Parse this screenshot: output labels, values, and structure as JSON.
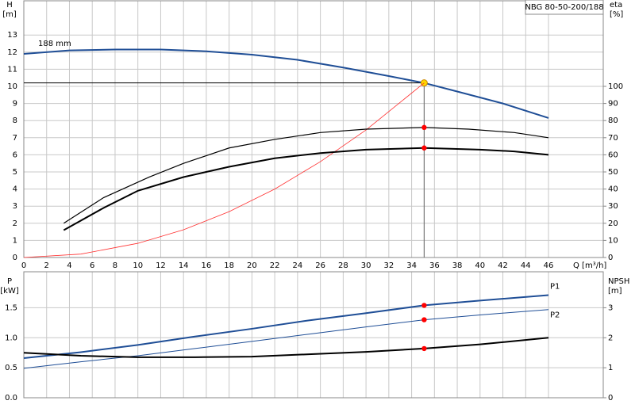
{
  "chart_data": [
    {
      "type": "line",
      "title": "NBG 80-50-200/188",
      "y_label": [
        "H",
        "[m]"
      ],
      "y2_label": [
        "eta",
        "[%]"
      ],
      "x_label": "Q [m³/h]",
      "xlim": [
        0,
        50.8
      ],
      "xticks": [
        0,
        2,
        4,
        6,
        8,
        10,
        12,
        14,
        16,
        18,
        20,
        22,
        24,
        26,
        28,
        30,
        32,
        34,
        36,
        38,
        40,
        42,
        44,
        46
      ],
      "ylim": [
        0,
        15
      ],
      "yticks": [
        0,
        1,
        2,
        3,
        4,
        5,
        6,
        7,
        8,
        9,
        10,
        11,
        12,
        13
      ],
      "y2lim": [
        0,
        150
      ],
      "y2ticks": [
        0,
        10,
        20,
        30,
        40,
        50,
        60,
        70,
        80,
        90,
        100
      ],
      "grid": true,
      "xtick_labels": true,
      "duty_x": 35.1,
      "duty_y": 10.2,
      "series": [
        {
          "name": "188 mm",
          "color": "#1f4e96",
          "width": 2,
          "label_at": "start",
          "point_color": "#ffd700",
          "x": [
            0,
            4,
            8,
            12,
            16,
            20,
            24,
            28,
            32,
            35.1,
            38,
            42,
            46
          ],
          "values": [
            11.9,
            12.1,
            12.15,
            12.15,
            12.05,
            11.85,
            11.55,
            11.1,
            10.6,
            10.2,
            9.7,
            9.0,
            8.15
          ]
        },
        {
          "color": "#ff3030",
          "width": 0.8,
          "x": [
            0,
            5,
            10,
            14,
            18,
            22,
            26,
            30,
            35.1
          ],
          "values": [
            0,
            0.2,
            0.83,
            1.62,
            2.68,
            4.0,
            5.6,
            7.45,
            10.2
          ]
        },
        {
          "color": "#000000",
          "width": 1.2,
          "axis": "y2",
          "point_color": "#ff0000",
          "x": [
            3.5,
            7,
            11,
            14,
            18,
            22,
            26,
            30,
            35.1,
            39,
            43,
            46
          ],
          "values": [
            20,
            35,
            47,
            55,
            64,
            69,
            73,
            75,
            76,
            75,
            73,
            70
          ]
        },
        {
          "color": "#000000",
          "width": 2,
          "axis": "y2",
          "point_color": "#ff0000",
          "x": [
            3.5,
            7,
            10,
            14,
            18,
            22,
            26,
            30,
            35.1,
            40,
            43,
            46
          ],
          "values": [
            16,
            29,
            39,
            47,
            53,
            58,
            61,
            63,
            64,
            63,
            62,
            60
          ]
        }
      ]
    },
    {
      "type": "line",
      "y_label": [
        "P",
        "[kW]"
      ],
      "y2_label": [
        "NPSH",
        "[m]"
      ],
      "xlim": [
        0,
        50.8
      ],
      "xticks": [
        0,
        2,
        4,
        6,
        8,
        10,
        12,
        14,
        16,
        18,
        20,
        22,
        24,
        26,
        28,
        30,
        32,
        34,
        36,
        38,
        40,
        42,
        44,
        46
      ],
      "ylim": [
        0,
        2.1
      ],
      "yticks": [
        {
          "value": 0,
          "label": "0.0"
        },
        {
          "value": 0.5,
          "label": "0.5"
        },
        {
          "value": 1,
          "label": "1.0"
        },
        {
          "value": 1.5,
          "label": "1.5"
        }
      ],
      "y2lim": [
        0,
        4.2
      ],
      "y2ticks": [
        0,
        1,
        2,
        3
      ],
      "grid": true,
      "xtick_labels": false,
      "duty_x": 35.1,
      "series": [
        {
          "name": "P1",
          "color": "#1f4e96",
          "width": 2,
          "label_at": "end-above",
          "point_color": "#ff0000",
          "x": [
            0,
            5,
            10,
            15,
            20,
            25,
            30,
            35.1,
            40,
            46
          ],
          "values": [
            0.66,
            0.76,
            0.88,
            1.02,
            1.15,
            1.29,
            1.41,
            1.54,
            1.62,
            1.71
          ]
        },
        {
          "name": "P2",
          "color": "#1f4e96",
          "width": 1,
          "label_at": "end-below",
          "point_color": "#ff0000",
          "x": [
            0,
            5,
            10,
            15,
            20,
            25,
            30,
            35.1,
            40,
            46
          ],
          "values": [
            0.49,
            0.6,
            0.7,
            0.82,
            0.94,
            1.06,
            1.18,
            1.3,
            1.38,
            1.47
          ]
        },
        {
          "color": "#000000",
          "width": 2,
          "axis": "y2",
          "point_color": "#ff0000",
          "x": [
            0,
            5,
            10,
            15,
            20,
            25,
            30,
            35.1,
            40,
            46
          ],
          "values": [
            1.5,
            1.4,
            1.35,
            1.35,
            1.37,
            1.45,
            1.53,
            1.64,
            1.78,
            2.0
          ]
        }
      ]
    }
  ]
}
